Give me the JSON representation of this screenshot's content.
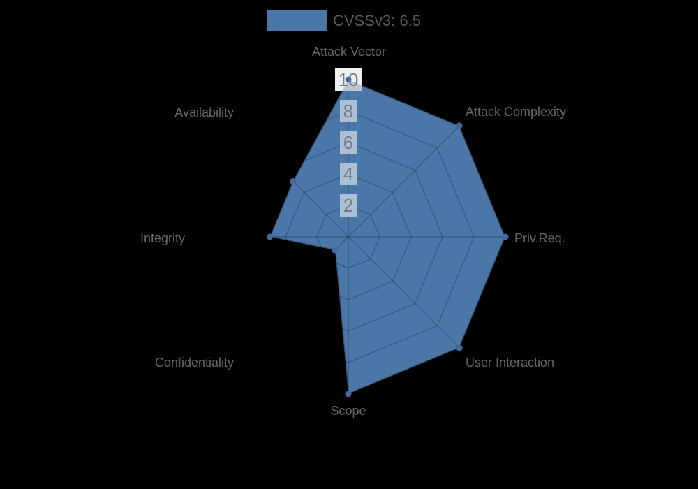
{
  "legend": {
    "label": "CVSSv3: 6.5",
    "color": "#4a76a8"
  },
  "colors": {
    "background": "#000000",
    "series_fill": "#4a76a8",
    "axis_label_text": "#666666",
    "tick_text": "#757c85",
    "tick_backdrop": "#abbfd5",
    "tick_backdrop_top": "#eff0f1",
    "marker": "#436a9d"
  },
  "chart_data": {
    "type": "radar",
    "categories": [
      "Attack Vector",
      "Attack Complexity",
      "Priv.Req.",
      "User Interaction",
      "Scope",
      "Confidentiality",
      "Integrity",
      "Availability"
    ],
    "series": [
      {
        "name": "CVSSv3: 6.5",
        "color": "#4a76a8",
        "values": [
          10,
          10,
          10,
          10,
          10,
          1.2,
          5,
          5
        ]
      }
    ],
    "min": 0,
    "max": 10,
    "ticks": [
      2,
      4,
      6,
      8,
      10
    ],
    "grid": true,
    "legend_position": "top"
  }
}
